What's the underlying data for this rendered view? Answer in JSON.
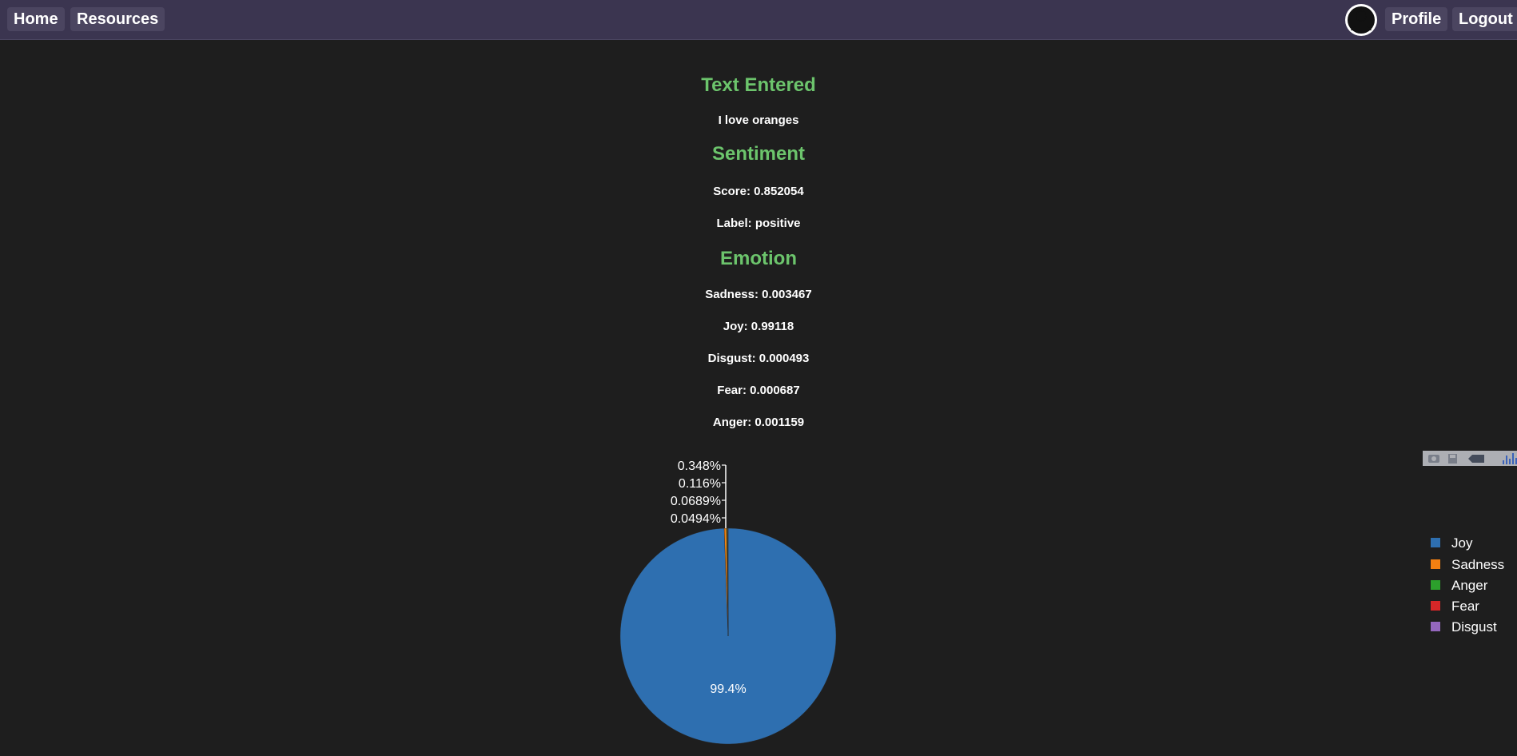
{
  "nav": {
    "home": "Home",
    "resources": "Resources",
    "profile": "Profile",
    "logout": "Logout"
  },
  "text_entered": {
    "title": "Text Entered",
    "value": "I love oranges"
  },
  "sentiment": {
    "title": "Sentiment",
    "score": "Score: 0.852054",
    "label": "Label: positive"
  },
  "emotion": {
    "title": "Emotion",
    "sadness": "Sadness: 0.003467",
    "joy": "Joy: 0.99118",
    "disgust": "Disgust: 0.000493",
    "fear": "Fear: 0.000687",
    "anger": "Anger: 0.001159"
  },
  "colors": {
    "joy": "#2e6fb0",
    "sadness": "#f28012",
    "anger": "#2ca02c",
    "fear": "#d62728",
    "disgust": "#9467bd",
    "heading": "#6cc46c",
    "navbar": "#3b3550"
  },
  "chart_data": {
    "type": "pie",
    "categories": [
      "Joy",
      "Sadness",
      "Anger",
      "Fear",
      "Disgust"
    ],
    "values": [
      0.99118,
      0.003467,
      0.001159,
      0.000687,
      0.000493
    ],
    "percent_labels": [
      "99.4%",
      "0.348%",
      "0.116%",
      "0.0689%",
      "0.0494%"
    ],
    "legend": [
      "Joy",
      "Sadness",
      "Anger",
      "Fear",
      "Disgust"
    ],
    "legend_position": "right"
  }
}
